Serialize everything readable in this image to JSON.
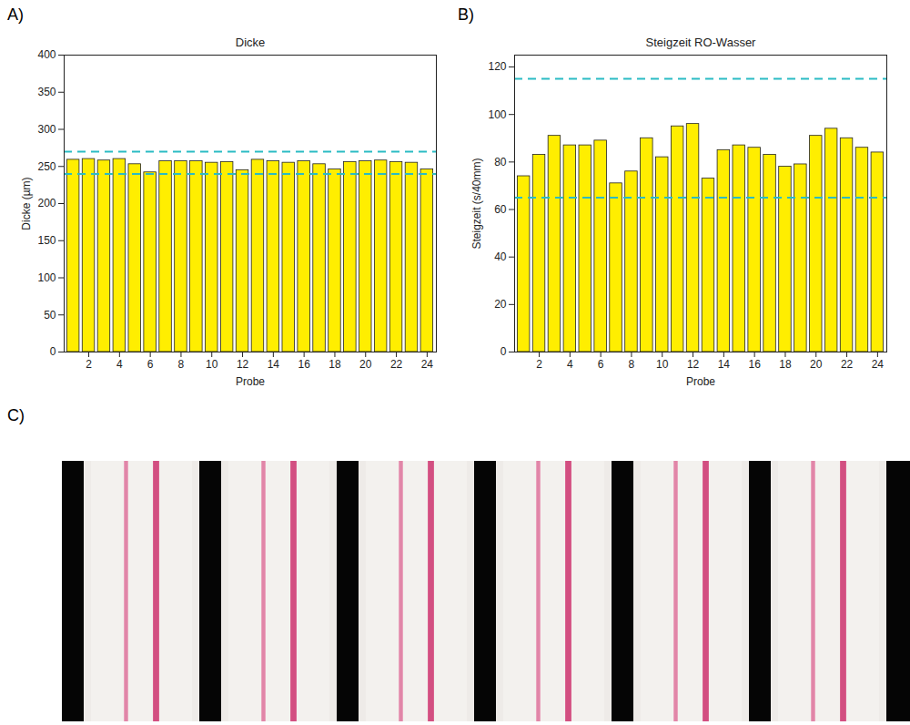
{
  "chart_data": [
    {
      "type": "bar",
      "panel": "A)",
      "title": "Dicke",
      "x_label": "Probe",
      "y_label": "Dicke (µm)",
      "x": [
        1,
        2,
        3,
        4,
        5,
        6,
        7,
        8,
        9,
        10,
        11,
        12,
        13,
        14,
        15,
        16,
        17,
        18,
        19,
        20,
        21,
        22,
        23,
        24
      ],
      "values": [
        259,
        260,
        258,
        260,
        253,
        242,
        257,
        257,
        257,
        255,
        256,
        245,
        259,
        257,
        255,
        257,
        253,
        246,
        256,
        257,
        258,
        256,
        255,
        246
      ],
      "color": "#ffee00",
      "xlim": [
        0.4,
        24.6
      ],
      "xticks": [
        2,
        4,
        6,
        8,
        10,
        12,
        14,
        16,
        18,
        20,
        22,
        24
      ],
      "ylim": [
        0,
        400
      ],
      "yticks": [
        0,
        50,
        100,
        150,
        200,
        250,
        300,
        350,
        400
      ],
      "grid": false,
      "annotations": [
        {
          "y": 270,
          "line_style": "dashed",
          "color": "#2bbbc4"
        },
        {
          "y": 240,
          "line_style": "dashed",
          "color": "#2bbbc4"
        }
      ]
    },
    {
      "type": "bar",
      "panel": "B)",
      "title": "Steigzeit RO-Wasser",
      "x_label": "Probe",
      "y_label": "Steigzeit (s/40mm)",
      "x": [
        1,
        2,
        3,
        4,
        5,
        6,
        7,
        8,
        9,
        10,
        11,
        12,
        13,
        14,
        15,
        16,
        17,
        18,
        19,
        20,
        21,
        22,
        23,
        24
      ],
      "values": [
        74,
        83,
        91,
        87,
        87,
        89,
        71,
        76,
        90,
        82,
        95,
        96,
        73,
        85,
        87,
        86,
        83,
        78,
        79,
        91,
        94,
        90,
        86,
        84
      ],
      "color": "#ffee00",
      "xlim": [
        0.4,
        24.6
      ],
      "xticks": [
        2,
        4,
        6,
        8,
        10,
        12,
        14,
        16,
        18,
        20,
        22,
        24
      ],
      "ylim": [
        0,
        125
      ],
      "yticks": [
        0,
        20,
        40,
        60,
        80,
        100,
        120
      ],
      "grid": false,
      "annotations": [
        {
          "y": 115,
          "line_style": "dashed",
          "color": "#2bbbc4"
        },
        {
          "y": 65,
          "line_style": "dashed",
          "color": "#2bbbc4"
        }
      ]
    }
  ],
  "photo": {
    "panel": "C)"
  }
}
